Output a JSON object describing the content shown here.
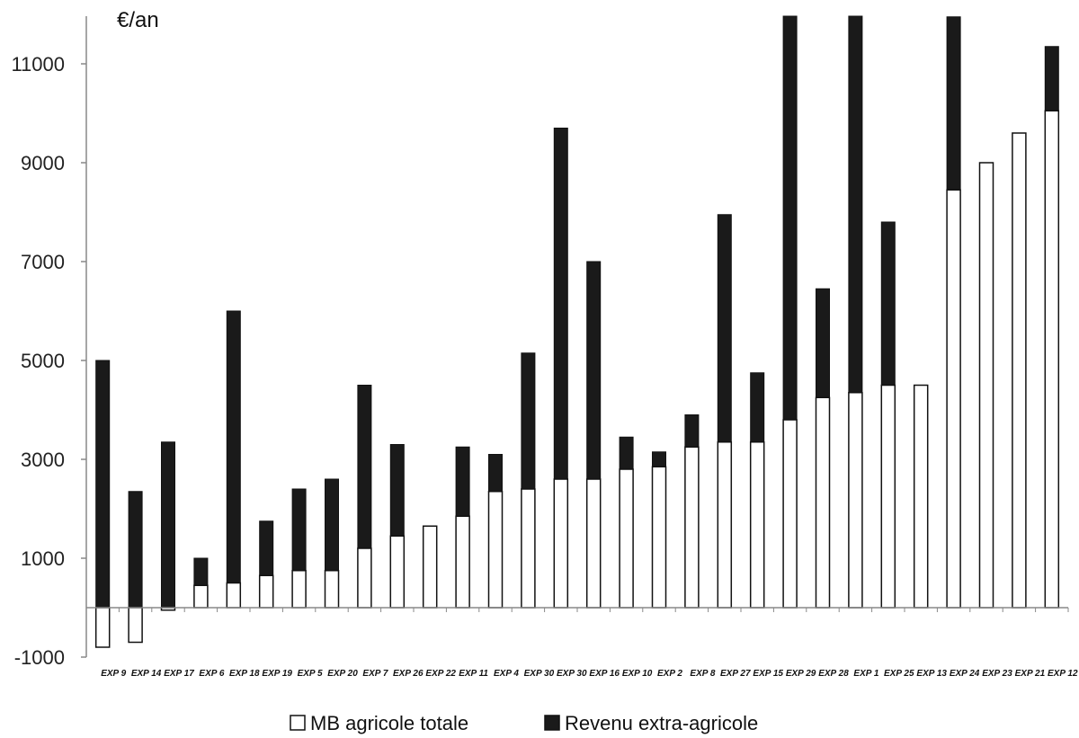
{
  "chart_data": {
    "type": "bar",
    "stacked": true,
    "unit_label": "€/an",
    "categories": [
      "EXP 9",
      "EXP 14",
      "EXP 17",
      "EXP 6",
      "EXP 18",
      "EXP 19",
      "EXP 5",
      "EXP 20",
      "EXP 7",
      "EXP 26",
      "EXP 22",
      "EXP 11",
      "EXP 4",
      "EXP 30",
      "EXP 30",
      "EXP 16",
      "EXP 10",
      "EXP 2",
      "EXP 8",
      "EXP 27",
      "EXP 15",
      "EXP 29",
      "EXP 28",
      "EXP 1",
      "EXP 25",
      "EXP 13",
      "EXP 24",
      "EXP 23",
      "EXP 21",
      "EXP 12"
    ],
    "series": [
      {
        "name": "MB agricole totale",
        "color": "#ffffff",
        "values": [
          -800,
          -700,
          -50,
          450,
          500,
          650,
          750,
          750,
          1200,
          1450,
          1650,
          1850,
          2350,
          2400,
          2600,
          2600,
          2800,
          2850,
          3250,
          3350,
          3350,
          3800,
          4250,
          4350,
          4500,
          4500,
          8450,
          9000,
          9600,
          10050
        ]
      },
      {
        "name": "Revenu extra-agricole",
        "color": "#1a1a1a",
        "values": [
          5000,
          2350,
          3350,
          550,
          5500,
          1100,
          1650,
          1850,
          3300,
          1850,
          0,
          1400,
          750,
          2750,
          7100,
          4400,
          650,
          300,
          650,
          4600,
          1400,
          8200,
          2200,
          7650,
          3300,
          0,
          3500,
          0,
          0,
          1300
        ]
      }
    ],
    "ylim": [
      -1000,
      12000
    ],
    "yticks": [
      "-1000",
      "1000",
      "3000",
      "5000",
      "7000",
      "9000",
      "11000"
    ],
    "legend_position": "bottom-center",
    "grid": false
  }
}
